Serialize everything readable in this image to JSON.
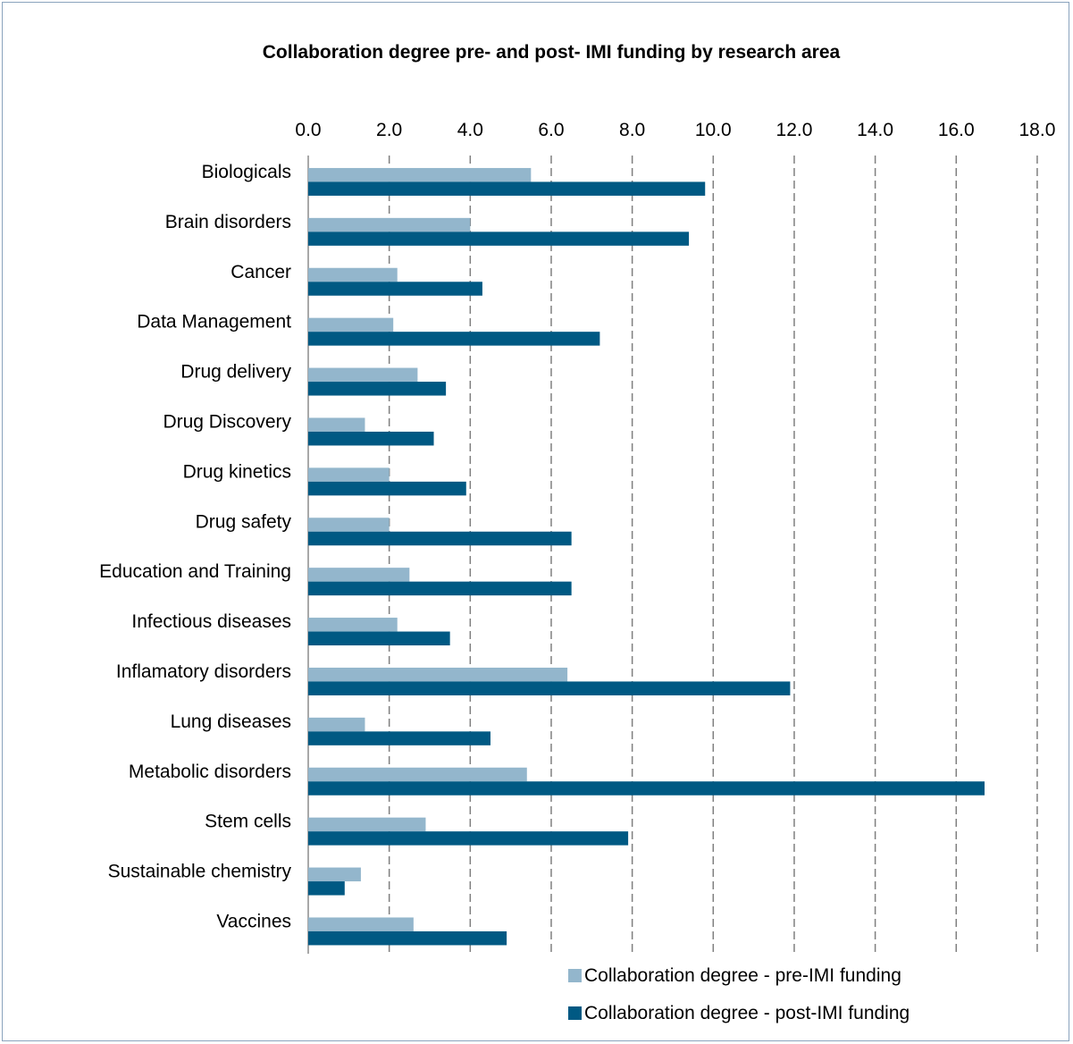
{
  "chart_data": {
    "type": "bar",
    "orientation": "horizontal",
    "title": "Collaboration degree pre- and post- IMI funding by research area",
    "xlim": [
      0,
      18
    ],
    "x_ticks": [
      "0.0",
      "2.0",
      "4.0",
      "6.0",
      "8.0",
      "10.0",
      "12.0",
      "14.0",
      "16.0",
      "18.0"
    ],
    "grid": "vertical dashed",
    "legend_position": "bottom",
    "categories": [
      "Biologicals",
      "Brain disorders",
      "Cancer",
      "Data Management",
      "Drug delivery",
      "Drug Discovery",
      "Drug kinetics",
      "Drug safety",
      "Education and Training",
      "Infectious diseases",
      "Inflamatory disorders",
      "Lung diseases",
      "Metabolic disorders",
      "Stem cells",
      "Sustainable chemistry",
      "Vaccines"
    ],
    "series": [
      {
        "name": "Collaboration degree - pre-IMI funding",
        "color": "#93b6cc",
        "values": [
          5.5,
          4.0,
          2.2,
          2.1,
          2.7,
          1.4,
          2.0,
          2.0,
          2.5,
          2.2,
          6.4,
          1.4,
          5.4,
          2.9,
          1.3,
          2.6
        ]
      },
      {
        "name": "Collaboration degree - post-IMI funding",
        "color": "#005983",
        "values": [
          9.8,
          9.4,
          4.3,
          7.2,
          3.4,
          3.1,
          3.9,
          6.5,
          6.5,
          3.5,
          11.9,
          4.5,
          16.7,
          7.9,
          0.9,
          4.9
        ]
      }
    ]
  }
}
